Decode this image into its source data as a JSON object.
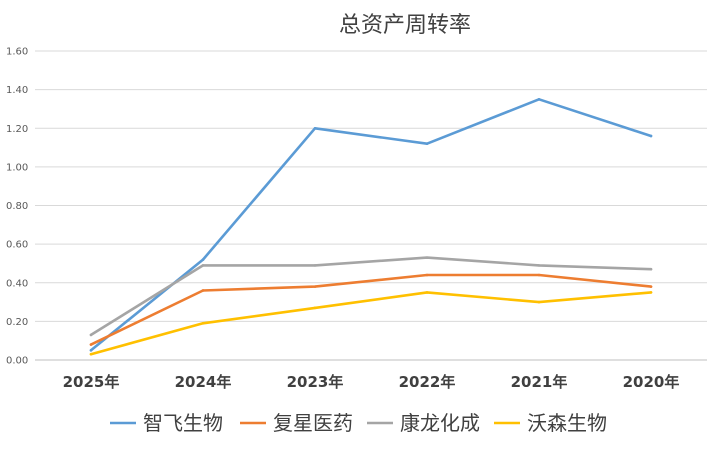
{
  "chart_data": {
    "type": "line",
    "title": "总资产周转率",
    "categories": [
      "2025年",
      "2024年",
      "2023年",
      "2022年",
      "2021年",
      "2020年"
    ],
    "ylim": [
      0,
      1.6
    ],
    "yticks": [
      "0.00",
      "0.20",
      "0.40",
      "0.60",
      "0.80",
      "1.00",
      "1.20",
      "1.40",
      "1.60"
    ],
    "grid": true,
    "legend_position": "bottom",
    "series": [
      {
        "name": "智飞生物",
        "color": "#5B9BD5",
        "values": [
          0.05,
          0.52,
          1.2,
          1.12,
          1.35,
          1.16
        ]
      },
      {
        "name": "复星医药",
        "color": "#ED7D31",
        "values": [
          0.08,
          0.36,
          0.38,
          0.44,
          0.44,
          0.38
        ]
      },
      {
        "name": "康龙化成",
        "color": "#A5A5A5",
        "values": [
          0.13,
          0.49,
          0.49,
          0.53,
          0.49,
          0.47
        ]
      },
      {
        "name": "沃森生物",
        "color": "#FFC000",
        "values": [
          0.03,
          0.19,
          0.27,
          0.35,
          0.3,
          0.35
        ]
      }
    ]
  }
}
